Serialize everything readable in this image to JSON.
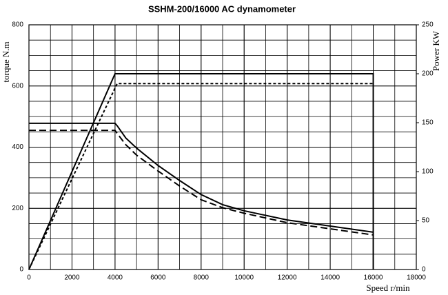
{
  "chart_data": {
    "type": "line",
    "title": "SSHM-200/16000 AC dynamometer",
    "y_label": "torque N.m",
    "y2_label": "Power KW",
    "x_label": "Speed r/min",
    "xlim": [
      0,
      18000
    ],
    "xticks": [
      0,
      2000,
      4000,
      6000,
      8000,
      10000,
      12000,
      14000,
      16000,
      18000
    ],
    "ylim": [
      0,
      800
    ],
    "yticks": [
      0,
      200,
      400,
      600,
      800
    ],
    "y2lim": [
      0,
      250
    ],
    "y2ticks": [
      0,
      50,
      100,
      150,
      200,
      250
    ],
    "grid": true,
    "minor_grid": {
      "x": 1000,
      "y": 50
    },
    "series": [
      {
        "color": "#000000",
        "dash": "solid",
        "axis": "y",
        "x": [
          0,
          4000,
          4100,
          4500,
          5000,
          6000,
          7000,
          8000,
          9000,
          10000,
          12000,
          14000,
          16000
        ],
        "values": [
          478,
          478,
          470,
          430,
          397,
          340,
          291,
          245,
          212,
          192,
          162,
          142,
          122
        ]
      },
      {
        "color": "#000000",
        "dash": "dashed",
        "axis": "y",
        "x": [
          0,
          4000,
          4100,
          4500,
          5000,
          6000,
          7000,
          8000,
          9000,
          10000,
          12000,
          14000,
          16000
        ],
        "values": [
          455,
          455,
          445,
          408,
          374,
          322,
          273,
          228,
          202,
          184,
          153,
          133,
          113
        ]
      },
      {
        "color": "#000000",
        "dash": "solid",
        "axis": "y2",
        "x": [
          0,
          4000,
          16000,
          16000
        ],
        "values": [
          0,
          200,
          200,
          0
        ]
      },
      {
        "color": "#000000",
        "dash": "dotted",
        "axis": "y2",
        "x": [
          0,
          4100,
          16000
        ],
        "values": [
          0,
          190,
          190
        ]
      }
    ]
  }
}
